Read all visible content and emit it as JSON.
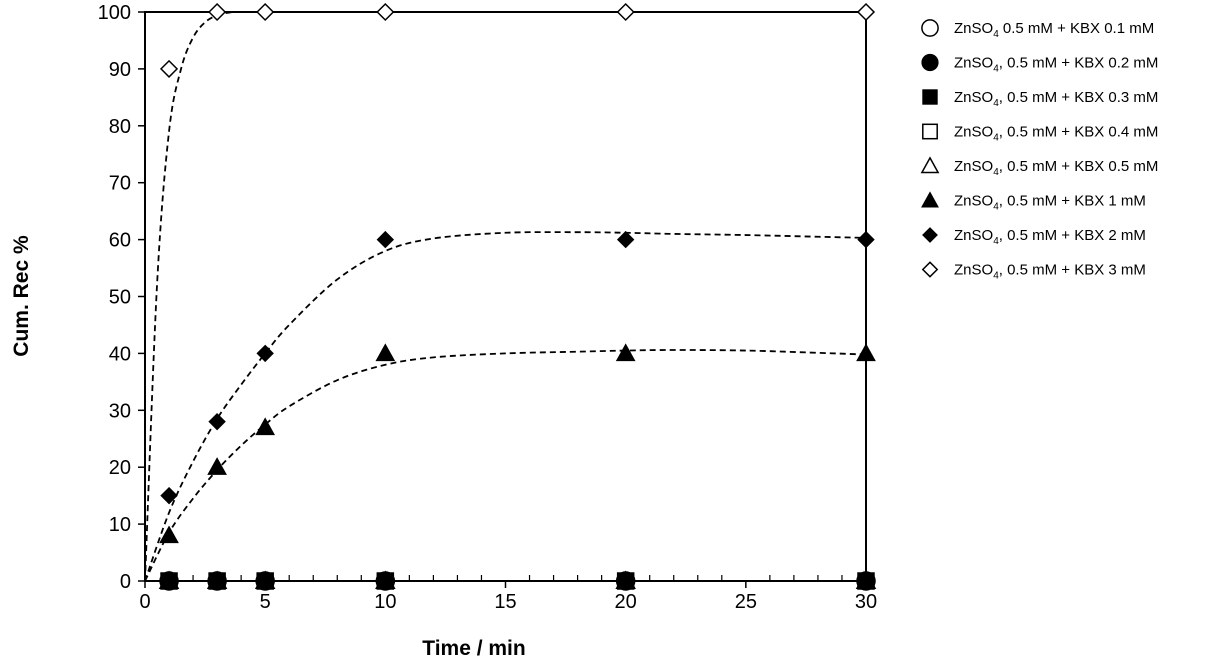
{
  "chart_data": {
    "type": "scatter",
    "title": "",
    "xlabel": "Time / min",
    "ylabel": "Cum. Rec %",
    "xlim": [
      0,
      30
    ],
    "ylim": [
      0,
      100
    ],
    "x_ticks": [
      0,
      5,
      10,
      15,
      20,
      25,
      30
    ],
    "y_ticks": [
      0,
      10,
      20,
      30,
      40,
      50,
      60,
      70,
      80,
      90,
      100
    ],
    "x_tick_labels": [
      "0",
      "5",
      "10",
      "15",
      "20",
      "25",
      "30"
    ],
    "y_tick_labels": [
      "0",
      "10",
      "20",
      "30",
      "40",
      "50",
      "60",
      "70",
      "80",
      "90",
      "100"
    ],
    "grid": false,
    "legend_position": "right",
    "x": [
      1,
      3,
      5,
      10,
      20,
      30
    ],
    "series": [
      {
        "name": "ZnSO4 0.5 mM + KBX 0.1 mM",
        "legend_label": [
          "ZnSO",
          "4",
          " 0.5 mM + KBX 0.1 mM"
        ],
        "marker": "circle-open",
        "values": [
          0,
          0,
          0,
          0,
          0,
          0
        ]
      },
      {
        "name": "ZnSO4, 0.5 mM + KBX 0.2 mM",
        "legend_label": [
          "ZnSO",
          "4",
          ",  0.5 mM + KBX 0.2 mM"
        ],
        "marker": "circle-filled",
        "values": [
          0,
          0,
          0,
          0,
          0,
          0
        ]
      },
      {
        "name": "ZnSO4, 0.5 mM + KBX 0.3 mM",
        "legend_label": [
          "ZnSO",
          "4",
          ",  0.5 mM + KBX 0.3 mM"
        ],
        "marker": "square-filled",
        "values": [
          0,
          0,
          0,
          0,
          0,
          0
        ]
      },
      {
        "name": "ZnSO4, 0.5 mM + KBX 0.4 mM",
        "legend_label": [
          "ZnSO",
          "4",
          ",  0.5 mM + KBX 0.4 mM"
        ],
        "marker": "square-open",
        "values": [
          0,
          0,
          0,
          0,
          0,
          0
        ]
      },
      {
        "name": "ZnSO4, 0.5 mM + KBX 0.5 mM",
        "legend_label": [
          "ZnSO",
          "4",
          ",  0.5 mM + KBX 0.5 mM"
        ],
        "marker": "triangle-open",
        "values": [
          0,
          0,
          0,
          0,
          0,
          0
        ]
      },
      {
        "name": "ZnSO4, 0.5 mM + KBX 1 mM",
        "legend_label": [
          "ZnSO",
          "4",
          ",  0.5 mM + KBX 1 mM"
        ],
        "marker": "triangle-filled",
        "values": [
          8,
          20,
          27,
          40,
          40,
          40
        ]
      },
      {
        "name": "ZnSO4, 0.5 mM + KBX 2 mM",
        "legend_label": [
          "ZnSO",
          "4",
          ",  0.5 mM + KBX 2 mM"
        ],
        "marker": "diamond-filled",
        "values": [
          15,
          28,
          40,
          60,
          60,
          60
        ]
      },
      {
        "name": "ZnSO4, 0.5 mM + KBX 3 mM",
        "legend_label": [
          "ZnSO",
          "4",
          ",  0.5 mM + KBX 3 mM"
        ],
        "marker": "diamond-open",
        "values": [
          90,
          100,
          100,
          100,
          100,
          100
        ]
      }
    ],
    "trend_lines": [
      {
        "series": "ZnSO4, 0.5 mM + KBX 1 mM",
        "style": "dashed",
        "x": [
          0,
          1,
          2,
          3,
          4,
          5,
          6,
          8,
          10,
          12,
          15,
          18,
          20,
          22,
          25,
          28,
          30
        ],
        "y": [
          0,
          8.5,
          14.5,
          19.5,
          23.8,
          27.5,
          30.7,
          35.3,
          38,
          39.3,
          40,
          40.3,
          40.5,
          40.6,
          40.5,
          40.1,
          39.8
        ]
      },
      {
        "series": "ZnSO4, 0.5 mM + KBX 2 mM",
        "style": "dashed",
        "x": [
          0,
          1,
          2,
          3,
          4,
          5,
          6,
          8,
          10,
          12,
          15,
          18,
          20,
          22,
          25,
          28,
          30
        ],
        "y": [
          0,
          12,
          21,
          28.5,
          34.5,
          40,
          45,
          53,
          58,
          60.2,
          61.2,
          61.3,
          61.2,
          61,
          60.8,
          60.5,
          60.3
        ]
      },
      {
        "series": "ZnSO4, 0.5 mM + KBX 3 mM",
        "style": "dashed",
        "x": [
          0,
          0.5,
          1,
          1.5,
          2,
          2.5,
          3,
          3.5,
          4,
          5,
          10,
          20,
          30
        ],
        "y": [
          0,
          52,
          79,
          90,
          95.5,
          98.2,
          99.4,
          99.9,
          100,
          100,
          100,
          100,
          100
        ]
      }
    ]
  }
}
